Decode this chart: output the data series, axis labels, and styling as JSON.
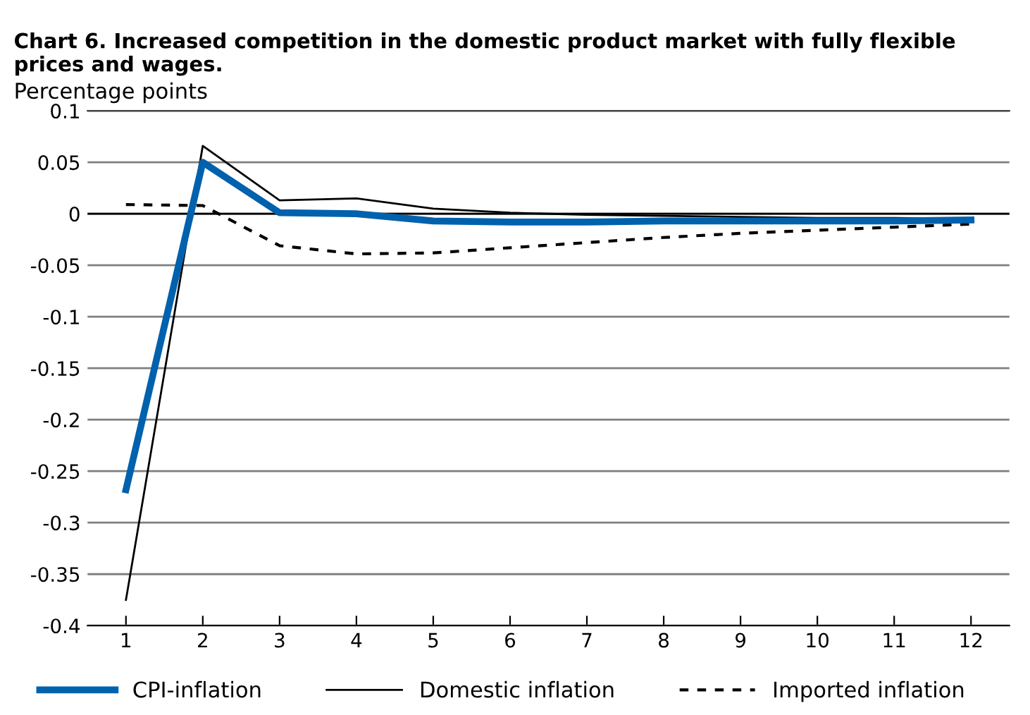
{
  "chart_data": {
    "type": "line",
    "title": "Chart 6. Increased competition in the domestic product market with fully flexible prices and wages.",
    "ylabel": "Percentage points",
    "x": [
      1,
      2,
      3,
      4,
      5,
      6,
      7,
      8,
      9,
      10,
      11,
      12
    ],
    "series": [
      {
        "name": "CPI-inflation",
        "color": "#0061ad",
        "values": [
          -0.268,
          0.05,
          0.001,
          0.0,
          -0.007,
          -0.008,
          -0.008,
          -0.007,
          -0.007,
          -0.007,
          -0.007,
          -0.006
        ]
      },
      {
        "name": "Domestic inflation",
        "color": "#000000",
        "values": [
          -0.375,
          0.066,
          0.013,
          0.015,
          0.005,
          0.001,
          -0.001,
          -0.002,
          -0.003,
          -0.004,
          -0.004,
          -0.005
        ]
      },
      {
        "name": "Imported inflation",
        "color": "#000000",
        "line_style": "dashed",
        "values": [
          0.009,
          0.008,
          -0.031,
          -0.039,
          -0.038,
          -0.033,
          -0.028,
          -0.023,
          -0.019,
          -0.016,
          -0.013,
          -0.01
        ]
      }
    ],
    "xlim": [
      0.5,
      12.5
    ],
    "xticks": [
      1,
      2,
      3,
      4,
      5,
      6,
      7,
      8,
      9,
      10,
      11,
      12
    ],
    "ylim": [
      -0.4,
      0.1
    ],
    "yticks": [
      -0.4,
      -0.35,
      -0.3,
      -0.25,
      -0.2,
      -0.15,
      -0.1,
      -0.05,
      0,
      0.05,
      0.1
    ],
    "grid": "y",
    "legend": "bottom",
    "marker": "none"
  }
}
